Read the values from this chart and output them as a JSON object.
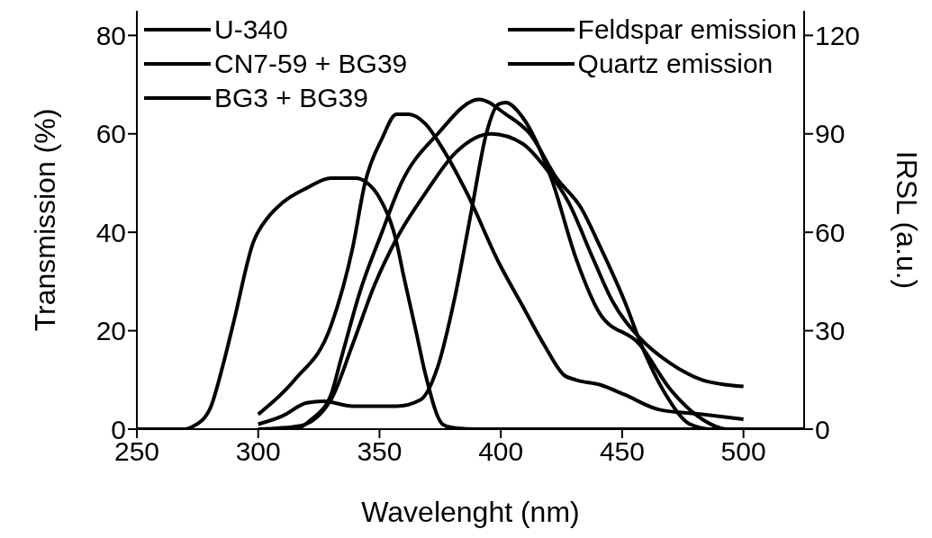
{
  "chart_data": {
    "type": "line",
    "xlabel": "Wavelenght (nm)",
    "ylabel": "Transmission (%)",
    "y2label": "IRSL (a.u.)",
    "xlim": [
      250,
      525
    ],
    "xticks": [
      250,
      300,
      350,
      400,
      450,
      500
    ],
    "ylim": [
      0,
      85
    ],
    "yticks": [
      0,
      20,
      40,
      60,
      80
    ],
    "y2lim": [
      0,
      127.5
    ],
    "y2ticks": [
      0,
      30,
      60,
      90,
      120
    ],
    "legend": "top",
    "marker": "none",
    "line_style": "solid",
    "series": [
      {
        "name": "U-340",
        "color": "#000000",
        "x": [
          250,
          270,
          273,
          280,
          286,
          290,
          298,
          304,
          310,
          320,
          330,
          340,
          345,
          350,
          357,
          360,
          365,
          369,
          376,
          380,
          390,
          525
        ],
        "values": [
          0,
          0,
          0.5,
          4,
          14,
          22,
          38,
          43,
          46,
          49,
          51,
          51,
          50,
          47,
          38,
          31,
          20,
          11,
          1,
          0.3,
          0,
          0
        ]
      },
      {
        "name": "CN7-59 + BG39",
        "color": "#000000",
        "x": [
          300,
          315,
          330,
          339,
          344,
          351,
          357,
          362,
          369,
          376,
          386,
          399,
          409,
          418,
          426,
          431,
          441,
          451,
          465,
          483,
          500
        ],
        "values": [
          3,
          10,
          21,
          37,
          50,
          59,
          64,
          64,
          62,
          57,
          48,
          34,
          25,
          17,
          11,
          10,
          9,
          7,
          4,
          3,
          2
        ]
      },
      {
        "name": "BG3 + BG39",
        "color": "#000000",
        "x": [
          300,
          315,
          322,
          330,
          334,
          342,
          351,
          359,
          374,
          391,
          402,
          412,
          423,
          433,
          441,
          451,
          458,
          468,
          478,
          487,
          500
        ],
        "values": [
          0,
          0,
          2,
          7,
          14,
          28,
          40,
          50,
          60,
          67,
          64,
          60,
          51,
          45,
          37,
          26,
          17,
          7,
          1,
          0,
          0
        ]
      },
      {
        "name": "Feldspar emission",
        "color": "#000000",
        "axis": "y2",
        "x": [
          300,
          310,
          320,
          327,
          339,
          357,
          367,
          374,
          381,
          388,
          394,
          399,
          402,
          409,
          421,
          431,
          441,
          457,
          470,
          483,
          493,
          500
        ],
        "values": [
          1.5,
          4,
          8,
          8.5,
          7,
          7,
          9,
          19,
          40,
          67,
          90,
          99,
          99.5,
          95,
          76,
          52,
          35,
          26,
          12,
          3,
          0,
          0
        ]
      },
      {
        "name": "Quartz emission",
        "color": "#000000",
        "axis": "y2",
        "x": [
          300,
          317,
          330,
          339,
          348,
          357,
          369,
          381,
          396,
          409,
          418,
          428,
          438,
          446,
          457,
          470,
          483,
          500
        ],
        "values": [
          0,
          1,
          9,
          26,
          44,
          58,
          72,
          84,
          90,
          87,
          80,
          69,
          52,
          39,
          28,
          20,
          15,
          13
        ]
      }
    ]
  }
}
